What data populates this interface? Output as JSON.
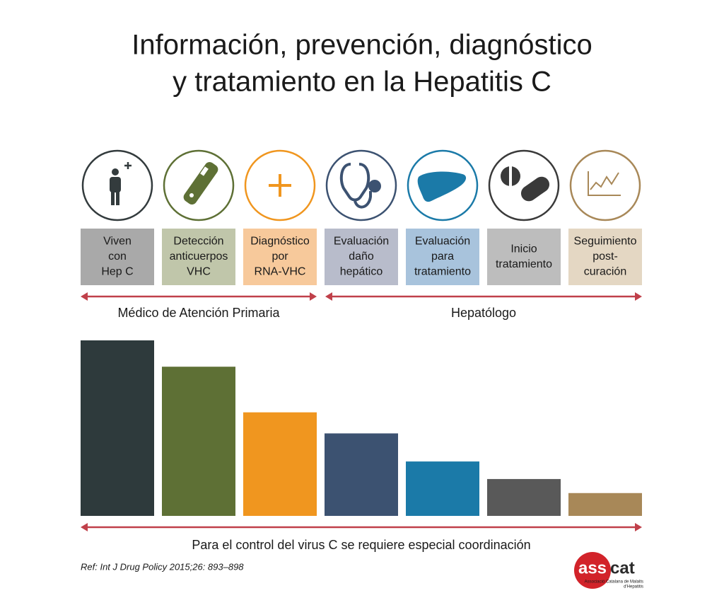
{
  "chart_data": {
    "type": "bar",
    "title": [
      "Información, prevención, diagnóstico",
      "y tratamiento en la Hepatitis C"
    ],
    "categories": [
      [
        "Viven",
        "con",
        "Hep C"
      ],
      [
        "Detección",
        "anticuerpos",
        "VHC"
      ],
      [
        "Diagnóstico",
        "por",
        "RNA-VHC"
      ],
      [
        "Evaluación",
        "daño",
        "hepático"
      ],
      [
        "Evaluación",
        "para",
        "tratamiento"
      ],
      [
        "Inicio",
        "tratamiento"
      ],
      [
        "Seguimiento",
        "post-",
        "curación"
      ]
    ],
    "values": [
      100,
      85,
      59,
      47,
      31,
      21,
      13
    ],
    "ylim": [
      0,
      100
    ],
    "colors": [
      "#2e3a3c",
      "#5e7035",
      "#f0961f",
      "#3c5271",
      "#1b7aa8",
      "#595959",
      "#a88858"
    ],
    "label_colors": [
      "#a9a9a9",
      "#c0c6aa",
      "#f7c99b",
      "#b8bccb",
      "#a8c3dc",
      "#bdbdbd",
      "#e4d7c3"
    ],
    "icon_colors": [
      "#333b3d",
      "#5e7035",
      "#f0961f",
      "#3c5271",
      "#1b7aa8",
      "#3a3a3a",
      "#a88858"
    ],
    "sections": [
      "Médico de Atención Primaria",
      "Hepatólogo"
    ],
    "footer": "Para el control del virus C se requiere especial coordinación",
    "reference": "Ref: Int J Drug Policy 2015;26: 893–898",
    "logo": {
      "a": "ass",
      "b": "cat",
      "sub": [
        "Associació Catalana de Malalts",
        "d'Hepatitis"
      ]
    }
  }
}
